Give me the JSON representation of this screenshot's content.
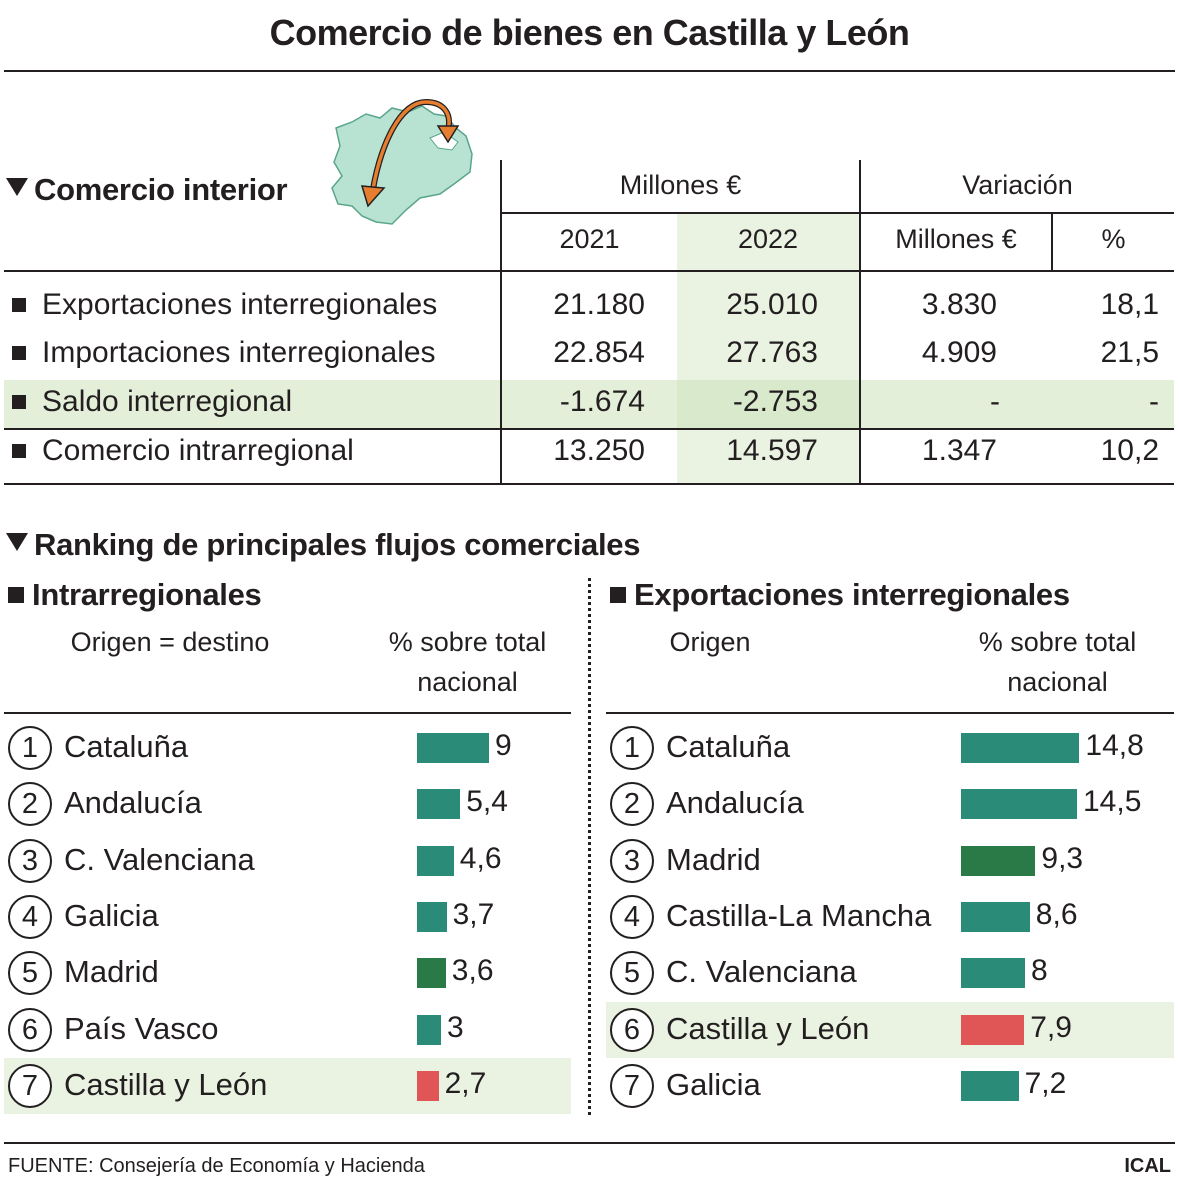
{
  "title": "Comercio de bienes en Castilla y León",
  "colors": {
    "teal": "#2a8c78",
    "dark_green": "#2a7a47",
    "red": "#e05555",
    "highlight": "#eaf3e2",
    "map_fill": "#b8e3d3",
    "arrow": "#e67e30"
  },
  "interior": {
    "title": "Comercio interior",
    "header_group1": "Millones €",
    "header_group2": "Variación",
    "col_2021": "2021",
    "col_2022": "2022",
    "col_var_abs": "Millones €",
    "col_var_pct": "%",
    "rows": [
      {
        "label": "Exportaciones interregionales",
        "v2021": "21.180",
        "v2022": "25.010",
        "var_abs": "3.830",
        "var_pct": "18,1"
      },
      {
        "label": "Importaciones interregionales",
        "v2021": "22.854",
        "v2022": "27.763",
        "var_abs": "4.909",
        "var_pct": "21,5"
      },
      {
        "label": "Saldo interregional",
        "v2021": "-1.674",
        "v2022": "-2.753",
        "var_abs": "-",
        "var_pct": "-"
      },
      {
        "label": "Comercio intrarregional",
        "v2021": "13.250",
        "v2022": "14.597",
        "var_abs": "1.347",
        "var_pct": "10,2"
      }
    ]
  },
  "ranking": {
    "title": "Ranking de principales flujos comerciales",
    "left": {
      "title": "Intrarregionales",
      "col_origin": "Origen = destino",
      "col_pct_line1": "% sobre total",
      "col_pct_line2": "nacional"
    },
    "right": {
      "title": "Exportaciones interregionales",
      "col_origin": "Origen",
      "col_pct_line1": "% sobre total",
      "col_pct_line2": "nacional"
    }
  },
  "chart_data": [
    {
      "type": "bar",
      "title": "Intrarregionales",
      "categories": [
        "Cataluña",
        "Andalucía",
        "C. Valenciana",
        "Galicia",
        "Madrid",
        "País Vasco",
        "Castilla y León"
      ],
      "ranks": [
        "1",
        "2",
        "3",
        "4",
        "5",
        "6",
        "7"
      ],
      "values": [
        9,
        5.4,
        4.6,
        3.7,
        3.6,
        3,
        2.7
      ],
      "labels": [
        "9",
        "5,4",
        "4,6",
        "3,7",
        "3,6",
        "3",
        "2,7"
      ],
      "colors": [
        "teal",
        "teal",
        "teal",
        "teal",
        "dark_green",
        "teal",
        "red"
      ],
      "highlight_index": 6
    },
    {
      "type": "bar",
      "title": "Exportaciones interregionales",
      "categories": [
        "Cataluña",
        "Andalucía",
        "Madrid",
        "Castilla-La Mancha",
        "C. Valenciana",
        "Castilla y León",
        "Galicia"
      ],
      "ranks": [
        "1",
        "2",
        "3",
        "4",
        "5",
        "6",
        "7"
      ],
      "values": [
        14.8,
        14.5,
        9.3,
        8.6,
        8,
        7.9,
        7.2
      ],
      "labels": [
        "14,8",
        "14,5",
        "9,3",
        "8,6",
        "8",
        "7,9",
        "7,2"
      ],
      "colors": [
        "teal",
        "teal",
        "dark_green",
        "teal",
        "teal",
        "red",
        "teal"
      ],
      "highlight_index": 5
    }
  ],
  "footer": {
    "source": "FUENTE: Consejería de Economía y Hacienda",
    "credit": "ICAL"
  }
}
